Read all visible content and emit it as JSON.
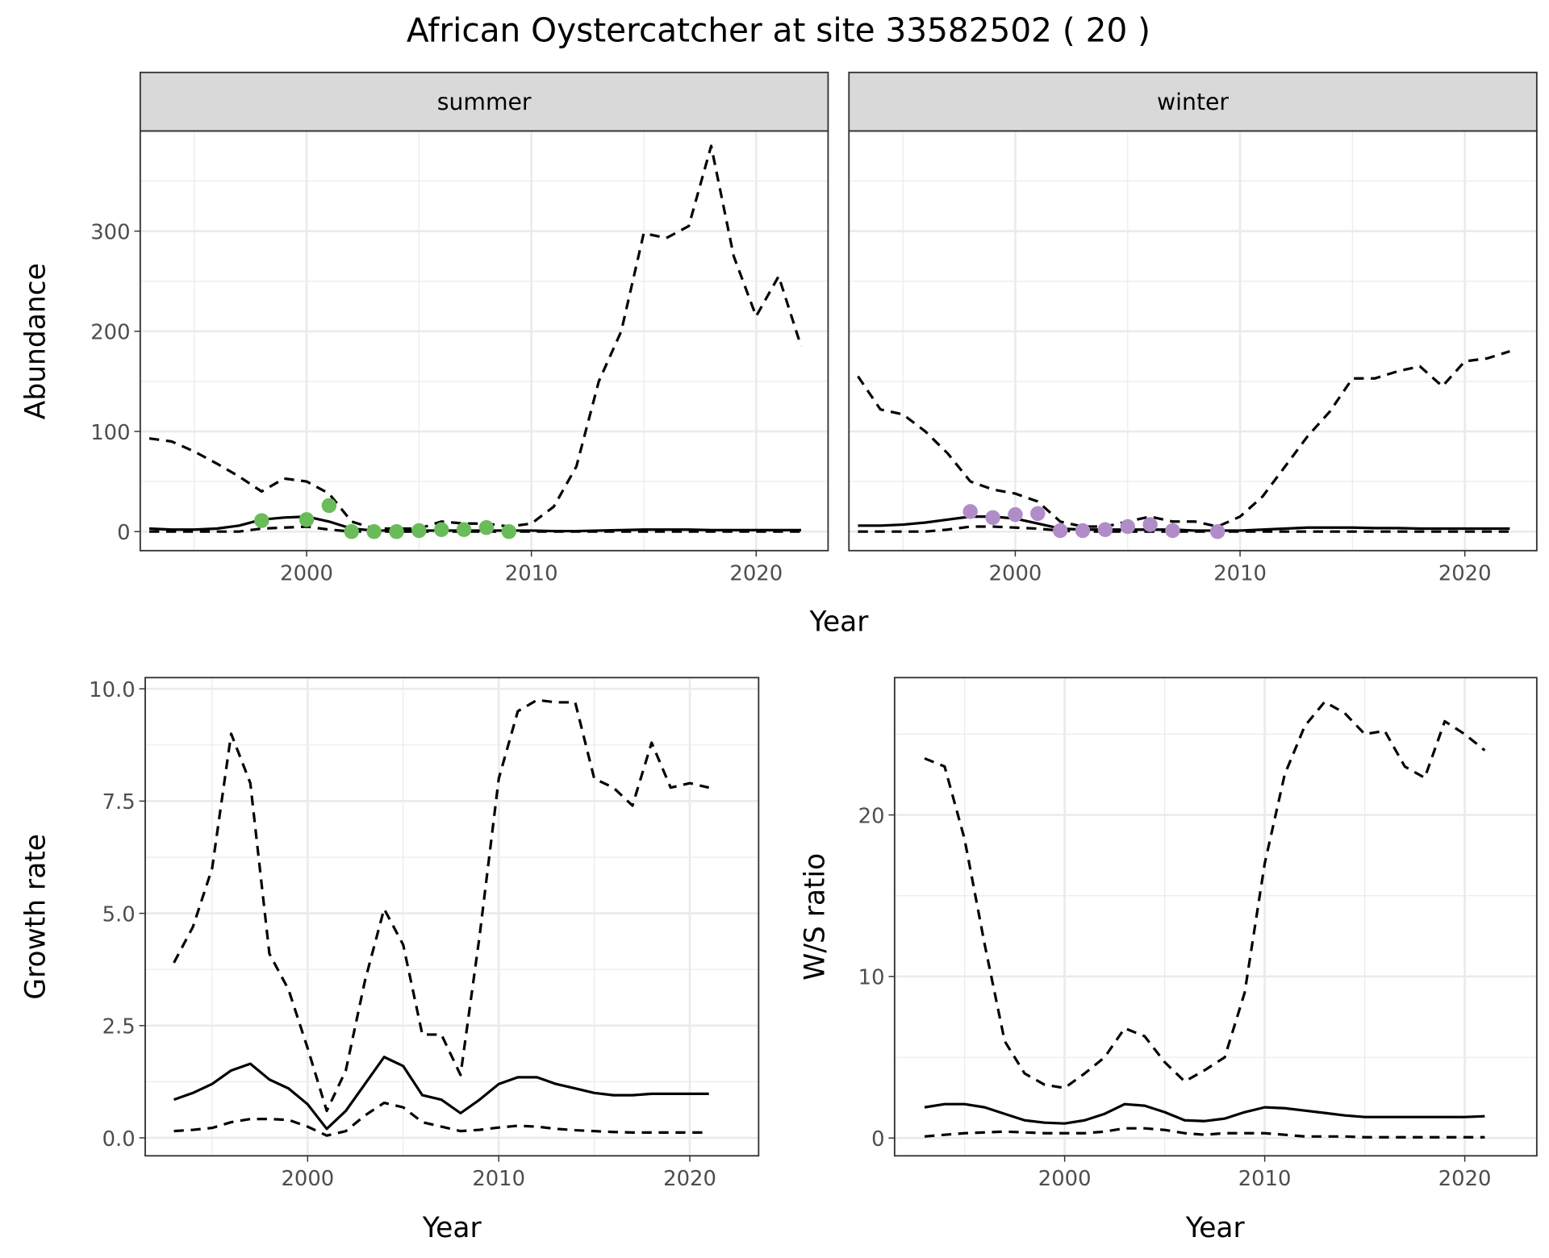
{
  "title": "African Oystercatcher at site 33582502 ( 20 )",
  "colors": {
    "summer_points": "#6ABB59",
    "winter_points": "#B08DC8",
    "line": "#000000",
    "strip_bg": "#D9D9D9",
    "grid": "#EBEBEB"
  },
  "chart_data": [
    {
      "type": "line",
      "facet": "summer",
      "strip": "summer",
      "xlabel": "Year",
      "ylabel": "Abundance",
      "xlim": [
        1992.6,
        2023.2
      ],
      "ylim": [
        -19,
        400
      ],
      "xticks": [
        2000,
        2010,
        2020
      ],
      "yticks": [
        0,
        100,
        200,
        300
      ],
      "x": [
        1993,
        1994,
        1995,
        1996,
        1997,
        1998,
        1999,
        2000,
        2001,
        2002,
        2003,
        2004,
        2005,
        2006,
        2007,
        2008,
        2009,
        2010,
        2011,
        2012,
        2013,
        2014,
        2015,
        2016,
        2017,
        2018,
        2019,
        2020,
        2021,
        2022
      ],
      "series": [
        {
          "name": "mean",
          "style": "solid",
          "values": [
            3,
            2,
            2,
            3,
            6,
            12,
            14,
            15,
            10,
            3,
            1,
            1,
            1,
            1,
            1,
            1,
            1,
            1,
            0.5,
            0.5,
            1,
            1.5,
            2,
            2,
            2,
            1.5,
            1.5,
            1.5,
            1.5,
            1.5
          ]
        },
        {
          "name": "upper",
          "style": "dashed",
          "values": [
            93,
            90,
            80,
            68,
            55,
            40,
            53,
            50,
            38,
            10,
            3,
            3,
            3,
            10,
            8,
            8,
            5,
            8,
            25,
            65,
            150,
            200,
            298,
            293,
            305,
            385,
            275,
            215,
            255,
            185
          ]
        },
        {
          "name": "lower",
          "style": "dashed",
          "values": [
            0,
            0,
            0,
            0,
            0,
            3,
            4,
            5,
            2,
            0,
            0,
            0,
            0,
            0,
            0,
            0,
            0,
            0,
            0,
            0,
            0,
            0,
            0,
            0,
            0,
            0,
            0,
            0,
            0,
            0
          ]
        }
      ],
      "points": {
        "x": [
          1998,
          2000,
          2001,
          2002,
          2003,
          2004,
          2005,
          2006,
          2007,
          2008,
          2009
        ],
        "y": [
          11,
          12,
          26,
          0,
          0,
          0,
          1,
          2,
          2,
          4,
          0
        ]
      }
    },
    {
      "type": "line",
      "facet": "winter",
      "strip": "winter",
      "xlabel": "Year",
      "ylabel": "Abundance",
      "xlim": [
        1992.6,
        2023.2
      ],
      "ylim": [
        -19,
        400
      ],
      "xticks": [
        2000,
        2010,
        2020
      ],
      "yticks": [
        0,
        100,
        200,
        300
      ],
      "x": [
        1993,
        1994,
        1995,
        1996,
        1997,
        1998,
        1999,
        2000,
        2001,
        2002,
        2003,
        2004,
        2005,
        2006,
        2007,
        2008,
        2009,
        2010,
        2011,
        2012,
        2013,
        2014,
        2015,
        2016,
        2017,
        2018,
        2019,
        2020,
        2021,
        2022
      ],
      "series": [
        {
          "name": "mean",
          "style": "solid",
          "values": [
            6,
            6,
            7,
            9,
            12,
            15,
            15,
            13,
            8,
            3,
            2,
            2,
            2,
            2,
            2,
            1,
            1,
            1,
            2,
            3,
            4,
            4,
            4,
            3.5,
            3.5,
            3,
            3,
            3,
            3,
            3
          ]
        },
        {
          "name": "upper",
          "style": "dashed",
          "values": [
            155,
            122,
            117,
            100,
            78,
            50,
            42,
            38,
            30,
            10,
            5,
            5,
            10,
            15,
            10,
            10,
            5,
            15,
            35,
            65,
            95,
            120,
            153,
            153,
            160,
            165,
            145,
            170,
            173,
            180
          ]
        },
        {
          "name": "lower",
          "style": "dashed",
          "values": [
            0,
            0,
            0,
            0,
            2,
            5,
            5,
            4,
            3,
            1,
            0,
            0,
            0,
            0,
            0,
            0,
            0,
            0,
            0,
            0,
            0,
            0,
            0,
            0,
            0,
            0,
            0,
            0,
            0,
            0
          ]
        }
      ],
      "points": {
        "x": [
          1998,
          1999,
          2000,
          2001,
          2002,
          2003,
          2004,
          2005,
          2006,
          2007,
          2009
        ],
        "y": [
          20,
          14,
          17,
          18,
          1,
          1,
          2,
          5,
          7,
          1,
          0
        ]
      }
    },
    {
      "type": "line",
      "facet": "growth",
      "xlabel": "Year",
      "ylabel": "Growth rate",
      "xlim": [
        1991.5,
        2023.6
      ],
      "ylim": [
        -0.4,
        10.25
      ],
      "xticks": [
        2000,
        2010,
        2020
      ],
      "yticks": [
        0,
        2.5,
        5,
        7.5,
        10
      ],
      "yticklabels": [
        "0.0",
        "2.5",
        "5.0",
        "7.5",
        "10.0"
      ],
      "x": [
        1993,
        1994,
        1995,
        1996,
        1997,
        1998,
        1999,
        2000,
        2001,
        2002,
        2003,
        2004,
        2005,
        2006,
        2007,
        2008,
        2009,
        2010,
        2011,
        2012,
        2013,
        2014,
        2015,
        2016,
        2017,
        2018,
        2019,
        2020,
        2021
      ],
      "series": [
        {
          "name": "mean",
          "style": "solid",
          "values": [
            0.85,
            1.0,
            1.2,
            1.5,
            1.65,
            1.3,
            1.1,
            0.75,
            0.2,
            0.6,
            1.2,
            1.8,
            1.6,
            0.95,
            0.85,
            0.55,
            0.85,
            1.2,
            1.35,
            1.35,
            1.2,
            1.1,
            1.0,
            0.95,
            0.95,
            0.98,
            0.98,
            0.98,
            0.98
          ]
        },
        {
          "name": "upper",
          "style": "dashed",
          "values": [
            3.9,
            4.7,
            6.0,
            9.0,
            7.9,
            4.1,
            3.3,
            2.0,
            0.6,
            1.5,
            3.5,
            5.1,
            4.3,
            2.3,
            2.3,
            1.4,
            4.5,
            8.0,
            9.5,
            9.75,
            9.7,
            9.7,
            8.0,
            7.8,
            7.4,
            8.8,
            7.8,
            7.9,
            7.8
          ]
        },
        {
          "name": "lower",
          "style": "dashed",
          "values": [
            0.15,
            0.18,
            0.22,
            0.35,
            0.42,
            0.42,
            0.4,
            0.25,
            0.05,
            0.15,
            0.5,
            0.78,
            0.68,
            0.35,
            0.25,
            0.15,
            0.18,
            0.23,
            0.27,
            0.25,
            0.2,
            0.17,
            0.15,
            0.13,
            0.12,
            0.12,
            0.12,
            0.12,
            0.12
          ]
        }
      ]
    },
    {
      "type": "line",
      "facet": "ratio",
      "xlabel": "Year",
      "ylabel": "W/S ratio",
      "xlim": [
        1991.5,
        2023.6
      ],
      "ylim": [
        -1.1,
        28.5
      ],
      "xticks": [
        2000,
        2010,
        2020
      ],
      "yticks": [
        0,
        10,
        20
      ],
      "x": [
        1993,
        1994,
        1995,
        1996,
        1997,
        1998,
        1999,
        2000,
        2001,
        2002,
        2003,
        2004,
        2005,
        2006,
        2007,
        2008,
        2009,
        2010,
        2011,
        2012,
        2013,
        2014,
        2015,
        2016,
        2017,
        2018,
        2019,
        2020,
        2021
      ],
      "series": [
        {
          "name": "mean",
          "style": "solid",
          "values": [
            1.9,
            2.1,
            2.1,
            1.9,
            1.5,
            1.1,
            0.95,
            0.9,
            1.1,
            1.5,
            2.1,
            2.0,
            1.6,
            1.1,
            1.05,
            1.2,
            1.6,
            1.9,
            1.85,
            1.7,
            1.55,
            1.4,
            1.3,
            1.3,
            1.3,
            1.3,
            1.3,
            1.3,
            1.35
          ]
        },
        {
          "name": "upper",
          "style": "dashed",
          "values": [
            23.5,
            23,
            18.5,
            12,
            6,
            4,
            3.3,
            3.1,
            4,
            5,
            6.8,
            6.3,
            4.7,
            3.5,
            4.2,
            5,
            9,
            17,
            22.5,
            25.5,
            27,
            26.3,
            25,
            25.2,
            23,
            22.3,
            25.8,
            25,
            24
          ]
        },
        {
          "name": "lower",
          "style": "dashed",
          "values": [
            0.1,
            0.2,
            0.3,
            0.35,
            0.4,
            0.35,
            0.3,
            0.3,
            0.3,
            0.4,
            0.6,
            0.6,
            0.5,
            0.3,
            0.2,
            0.3,
            0.3,
            0.3,
            0.2,
            0.1,
            0.1,
            0.1,
            0.05,
            0.05,
            0.05,
            0.05,
            0.05,
            0.05,
            0.05
          ]
        }
      ]
    }
  ]
}
